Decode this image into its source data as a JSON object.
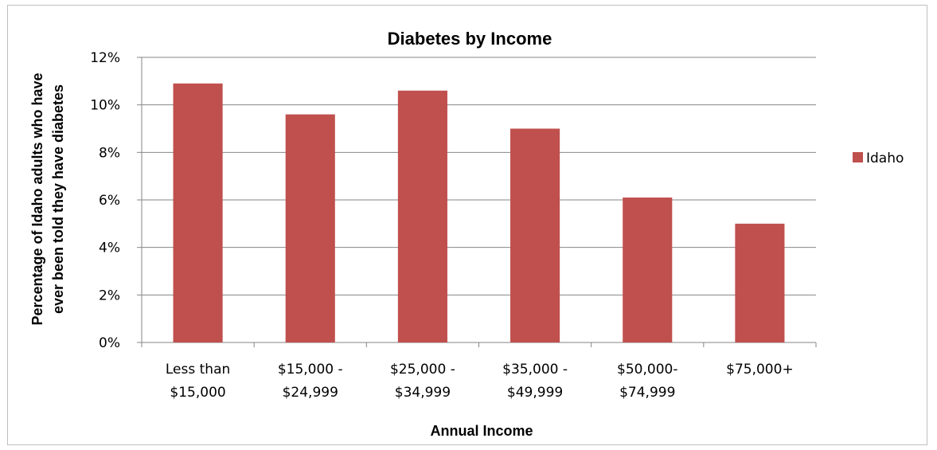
{
  "chart_data": {
    "type": "bar",
    "title": "Diabetes by Income",
    "xlabel": "Annual Income",
    "ylabel_lines": [
      "Percentage of Idaho adults  who have",
      "ever been told they have diabetes"
    ],
    "categories": [
      [
        "Less than",
        "$15,000"
      ],
      [
        "$15,000 -",
        "$24,999"
      ],
      [
        "$25,000 -",
        "$34,999"
      ],
      [
        "$35,000 -",
        "$49,999"
      ],
      [
        "$50,000-",
        "$74,999"
      ],
      [
        "$75,000+"
      ]
    ],
    "series": [
      {
        "name": "Idaho",
        "values": [
          10.9,
          9.6,
          10.6,
          9.0,
          6.1,
          5.0
        ],
        "color": "#c0504d"
      }
    ],
    "ylim": [
      0,
      12
    ],
    "yticks": [
      0,
      2,
      4,
      6,
      8,
      10,
      12
    ],
    "ytick_labels": [
      "0%",
      "2%",
      "4%",
      "6%",
      "8%",
      "10%",
      "12%"
    ],
    "grid": true,
    "gridline_color": "#868686",
    "legend_position": "right"
  }
}
